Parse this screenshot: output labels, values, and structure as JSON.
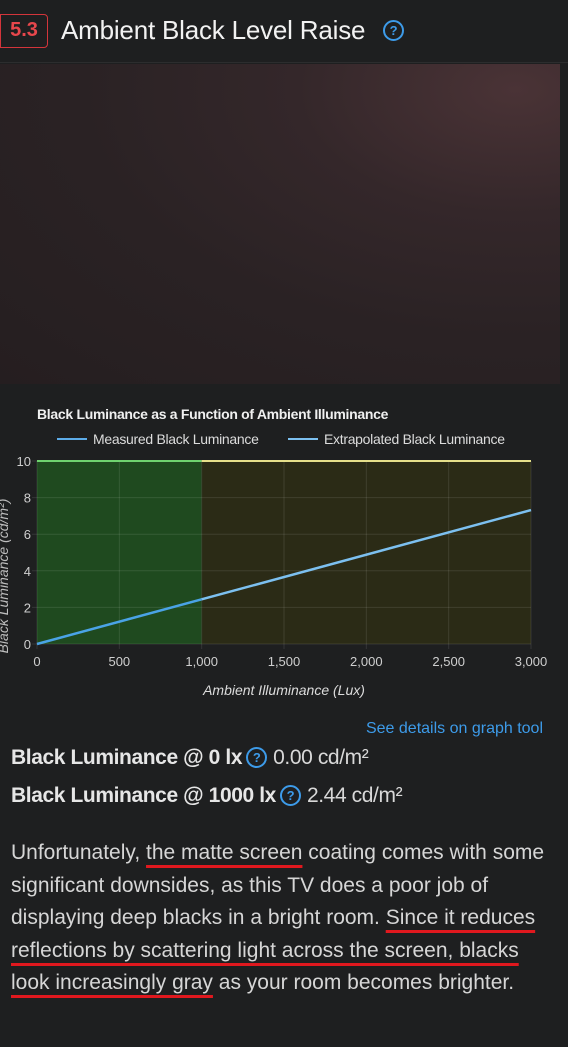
{
  "section": {
    "number": "5.3",
    "title": "Ambient Black Level Raise"
  },
  "photo_icon": "tv-screen-photo",
  "chart_data": {
    "type": "line",
    "title": "Black Luminance as a Function of Ambient Illuminance",
    "xlabel": "Ambient Illuminance (Lux)",
    "ylabel": "Black Luminance (cd/m²)",
    "xlim": [
      0,
      3000
    ],
    "ylim": [
      0,
      10
    ],
    "x_ticks": [
      "0",
      "500",
      "1,000",
      "1,500",
      "2,000",
      "2,500",
      "3,000"
    ],
    "y_ticks": [
      "0",
      "2",
      "4",
      "6",
      "8",
      "10"
    ],
    "x_tick_values": [
      0,
      500,
      1000,
      1500,
      2000,
      2500,
      3000
    ],
    "y_tick_values": [
      0,
      2,
      4,
      6,
      8,
      10
    ],
    "grid": true,
    "legend_position": "top",
    "series": [
      {
        "name": "Measured Black Luminance",
        "x": [
          0,
          1000
        ],
        "y": [
          0.0,
          2.44
        ],
        "color": "#4aa3e6"
      },
      {
        "name": "Extrapolated Black Luminance",
        "x": [
          1000,
          3000
        ],
        "y": [
          2.44,
          7.32
        ],
        "color": "#7cc0f0"
      }
    ],
    "regions": [
      {
        "from": 0,
        "to": 1000,
        "color": "#1f4a1f"
      },
      {
        "from": 1000,
        "to": 3000,
        "color": "#2b2b16"
      }
    ]
  },
  "link_text": "See details on graph tool",
  "metrics": [
    {
      "label": "Black Luminance @ 0 lx",
      "value": "0.00 cd/m²"
    },
    {
      "label": "Black Luminance @ 1000 lx",
      "value": "2.44 cd/m²"
    }
  ],
  "paragraph": {
    "p1": "Unfortunately, ",
    "u1": "the matte screen",
    "p2": " coating comes with some significant downsides, as this TV does a poor job of displaying deep blacks in a bright room. ",
    "u2": "Since it reduces reflections by scattering light across the screen, blacks look increasingly gray",
    "p3": " as your room becomes brighter."
  },
  "colors": {
    "accent": "#3d9be9",
    "badge": "#e8474c",
    "underline": "#e0181e"
  }
}
